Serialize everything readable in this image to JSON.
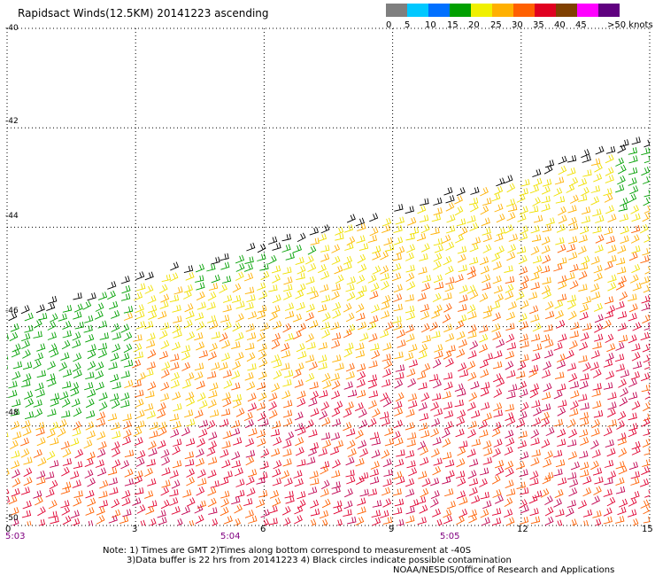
{
  "title": "Rapidsact Winds(12.5KM) 20141223 ascending",
  "legend": {
    "labels": [
      "0",
      "5",
      "10",
      "15",
      "20",
      "25",
      "30",
      "35",
      "40",
      "45",
      ">50 knots"
    ],
    "colors": [
      "#7f7f7f",
      "#00c8ff",
      "#0070ff",
      "#00a000",
      "#f0f000",
      "#ffb000",
      "#ff6000",
      "#e00020",
      "#804000",
      "#ff00ff",
      "#600080"
    ]
  },
  "map": {
    "lat_labels": [
      "-40",
      "-42",
      "-44",
      "-46",
      "-48",
      "-50"
    ],
    "lon_labels": [
      "0",
      "3",
      "6",
      "9",
      "12",
      "15"
    ],
    "time_labels": [
      "5:03",
      "5:04",
      "5:05"
    ],
    "lon_range": [
      0,
      15
    ],
    "lat_range": [
      -50,
      -40
    ],
    "grid": "dotted"
  },
  "notes": {
    "line1": "Note: 1) Times are GMT 2)Times along bottom correspond to measurement at -40S",
    "line2": "3)Data buffer is 22 hrs from 20141223 4) Black circles indicate possible contamination",
    "line3": "NOAA/NESDIS/Office of Research and Applications"
  }
}
